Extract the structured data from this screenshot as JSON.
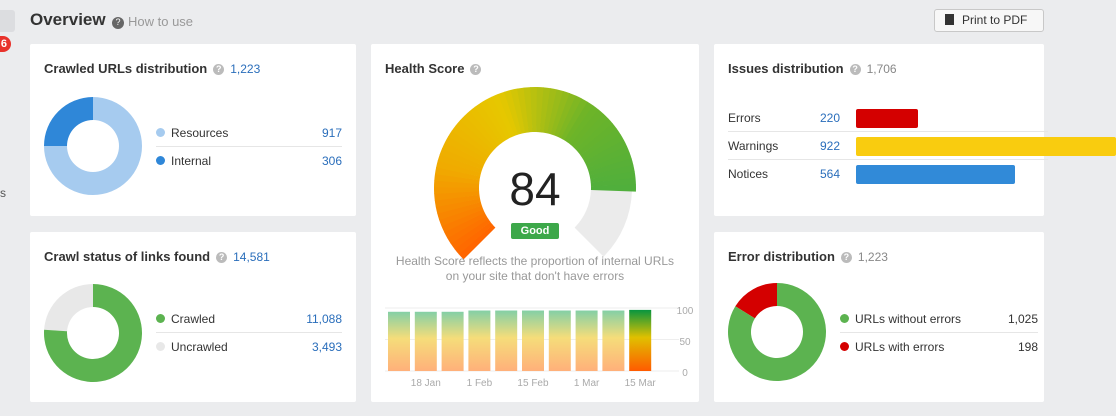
{
  "sidebar": {
    "badge": "6",
    "partial_text": "s"
  },
  "header": {
    "title": "Overview",
    "help_link": "How to use",
    "print_button": "Print to PDF"
  },
  "crawled_urls": {
    "title": "Crawled URLs distribution",
    "total": "1,223",
    "items": [
      {
        "label": "Resources",
        "value": "917",
        "color": "#a6cbef",
        "n": 917
      },
      {
        "label": "Internal",
        "value": "306",
        "color": "#2f87d8",
        "n": 306
      }
    ]
  },
  "crawl_status": {
    "title": "Crawl status of links found",
    "total": "14,581",
    "items": [
      {
        "label": "Crawled",
        "value": "11,088",
        "color": "#5cb350",
        "n": 11088
      },
      {
        "label": "Uncrawled",
        "value": "3,493",
        "color": "#e8e8e8",
        "n": 3493
      }
    ]
  },
  "health": {
    "title": "Health Score",
    "score": "84",
    "score_value": 84,
    "badge": "Good",
    "badge_color": "#3da84a",
    "description": "Health Score reflects the proportion of internal URLs on your site that don't have errors"
  },
  "chart_data": {
    "type": "bar",
    "categories": [
      "",
      "18 Jan",
      "",
      "1 Feb",
      "",
      "15 Feb",
      "",
      "1 Mar",
      "",
      "15 Mar"
    ],
    "values": [
      94,
      94,
      94,
      96,
      96,
      96,
      96,
      96,
      96,
      97
    ],
    "x_tick_labels": [
      "18 Jan",
      "1 Feb",
      "15 Feb",
      "1 Mar",
      "15 Mar"
    ],
    "y_tick_labels": [
      "100",
      "50",
      "0"
    ],
    "ylim": [
      0,
      100
    ],
    "grid": true
  },
  "issues": {
    "title": "Issues distribution",
    "total": "1,706",
    "items": [
      {
        "label": "Errors",
        "value": "220",
        "n": 220,
        "color": "#d40000"
      },
      {
        "label": "Warnings",
        "value": "922",
        "n": 922,
        "color": "#f9cc0f"
      },
      {
        "label": "Notices",
        "value": "564",
        "n": 564,
        "color": "#318ad8"
      }
    ]
  },
  "errors": {
    "title": "Error distribution",
    "total": "1,223",
    "items": [
      {
        "label": "URLs without errors",
        "value": "1,025",
        "color": "#5cb350",
        "n": 1025
      },
      {
        "label": "URLs with errors",
        "value": "198",
        "color": "#d40000",
        "n": 198
      }
    ]
  }
}
